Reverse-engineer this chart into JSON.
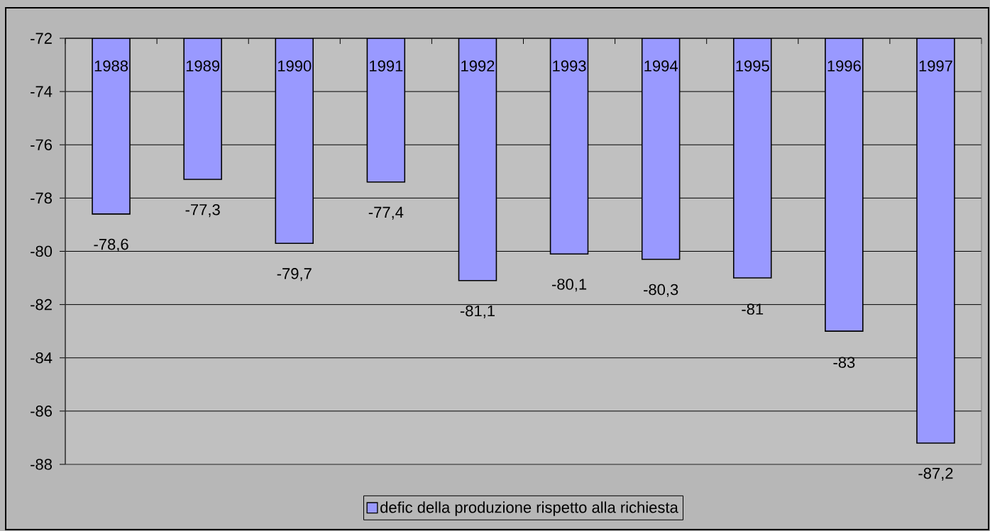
{
  "chart_data": {
    "type": "bar",
    "categories": [
      "1988",
      "1989",
      "1990",
      "1991",
      "1992",
      "1993",
      "1994",
      "1995",
      "1996",
      "1997"
    ],
    "series": [
      {
        "name": "defic della produzione rispetto alla richiesta",
        "color": "#9999ff",
        "values": [
          -78.6,
          -77.3,
          -79.7,
          -77.4,
          -81.1,
          -80.1,
          -80.3,
          -81,
          -83,
          -87.2
        ],
        "value_labels": [
          "-78,6",
          "-77,3",
          "-79,7",
          "-77,4",
          "-81,1",
          "-80,1",
          "-80,3",
          "-81",
          "-83",
          "-87,2"
        ]
      }
    ],
    "ylim": [
      -88,
      -72
    ],
    "yticks": [
      -72,
      -74,
      -76,
      -78,
      -80,
      -82,
      -84,
      -86,
      -88
    ],
    "grid": "y",
    "legend": "bottom"
  }
}
